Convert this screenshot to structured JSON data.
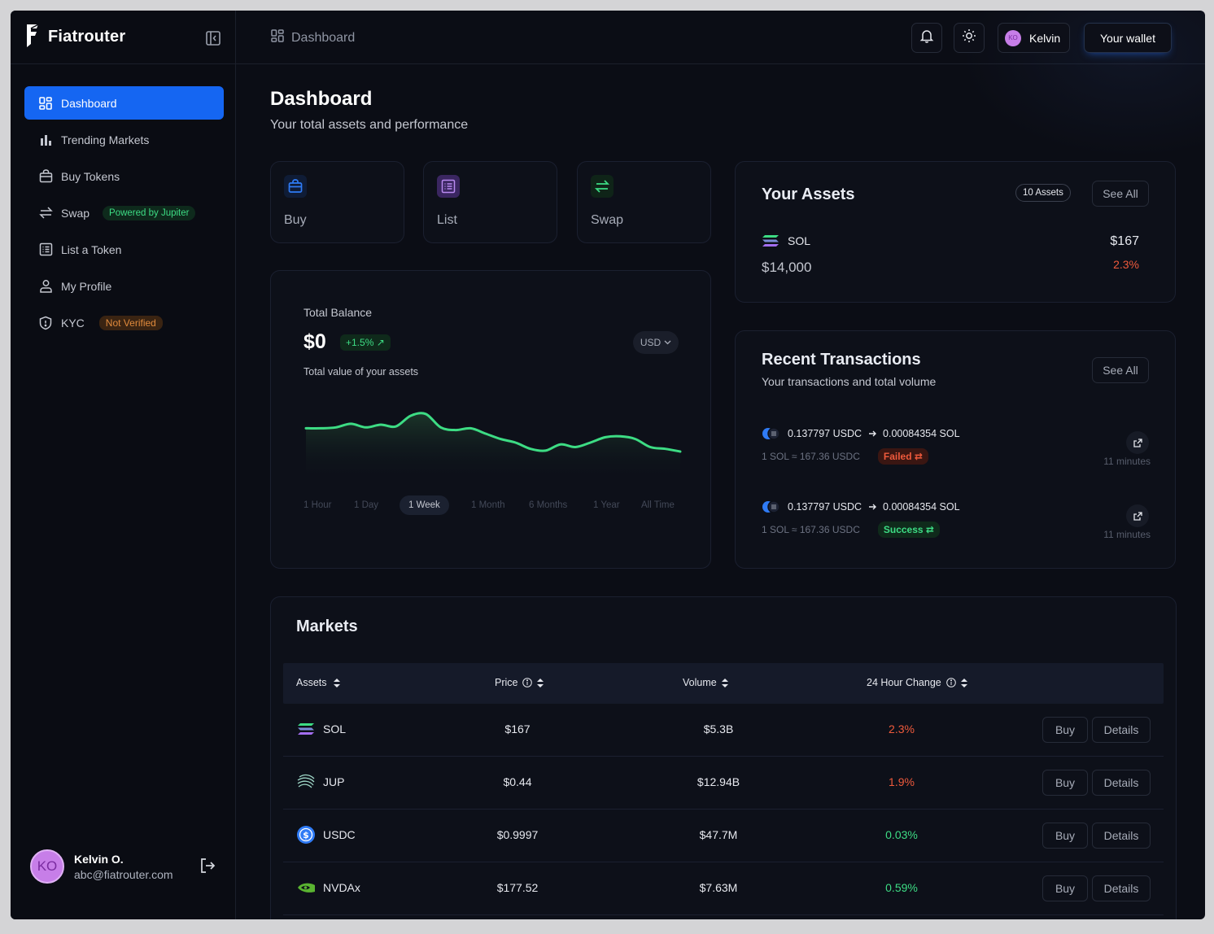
{
  "app": {
    "name": "Fiatrouter"
  },
  "sidebar": {
    "items": [
      {
        "label": "Dashboard",
        "icon": "dashboard-icon"
      },
      {
        "label": "Trending Markets",
        "icon": "bar-chart-icon"
      },
      {
        "label": "Buy Tokens",
        "icon": "shopping-bag-icon"
      },
      {
        "label": "Swap",
        "icon": "swap-icon",
        "badge": "Powered by Jupiter"
      },
      {
        "label": "List a Token",
        "icon": "list-icon"
      },
      {
        "label": "My Profile",
        "icon": "user-icon"
      },
      {
        "label": "KYC",
        "icon": "shield-icon",
        "badge": "Not Verified"
      }
    ],
    "user": {
      "initials": "KO",
      "name": "Kelvin O.",
      "email": "abc@fiatrouter.com"
    }
  },
  "header": {
    "breadcrumb": "Dashboard",
    "user_initials": "KO",
    "user_name": "Kelvin",
    "wallet_label": "Your wallet"
  },
  "page": {
    "title": "Dashboard",
    "subtitle": "Your total assets and performance"
  },
  "actions": [
    {
      "label": "Buy",
      "color": "#2f7bf5"
    },
    {
      "label": "List",
      "color": "#9b5de5"
    },
    {
      "label": "Swap",
      "color": "#3ddc84"
    }
  ],
  "balance": {
    "label": "Total Balance",
    "value": "$0",
    "change": "+1.5% ↗",
    "currency": "USD",
    "description": "Total value of your assets",
    "ranges": [
      "1 Hour",
      "1 Day",
      "1 Week",
      "1 Month",
      "6 Months",
      "1 Year",
      "All Time"
    ],
    "active_range": "1 Week"
  },
  "chart_data": {
    "type": "area",
    "title": "Total Balance",
    "x": [
      0,
      1,
      2,
      3,
      4,
      5,
      6,
      7,
      8,
      9,
      10,
      11,
      12,
      13,
      14,
      15,
      16,
      17,
      18,
      19,
      20,
      21,
      22,
      23,
      24,
      25
    ],
    "values": [
      56,
      56,
      57,
      61,
      57,
      60,
      58,
      70,
      72,
      57,
      54,
      56,
      50,
      44,
      40,
      33,
      31,
      38,
      35,
      40,
      46,
      47,
      44,
      35,
      33,
      30
    ],
    "ylim": [
      0,
      100
    ],
    "xlabel": "",
    "ylabel": "",
    "line_color": "#3ddc84"
  },
  "assets": {
    "title": "Your Assets",
    "count_label": "10 Assets",
    "see_all": "See All",
    "items": [
      {
        "symbol": "SOL",
        "value": "$14,000",
        "price": "$167",
        "change": "2.3%"
      }
    ]
  },
  "transactions": {
    "title": "Recent Transactions",
    "subtitle": "Your transactions and total volume",
    "see_all": "See All",
    "items": [
      {
        "from": "0.137797 USDC",
        "to": "0.00084354 SOL",
        "rate": "1 SOL ≈ 167.36 USDC",
        "status": "Failed ⇄",
        "time": "11 minutes"
      },
      {
        "from": "0.137797 USDC",
        "to": "0.00084354 SOL",
        "rate": "1 SOL ≈ 167.36 USDC",
        "status": "Success ⇄",
        "time": "11 minutes"
      }
    ]
  },
  "markets": {
    "title": "Markets",
    "columns": [
      "Assets",
      "Price",
      "Volume",
      "24 Hour Change"
    ],
    "buy_label": "Buy",
    "details_label": "Details",
    "rows": [
      {
        "symbol": "SOL",
        "price": "$167",
        "volume": "$5.3B",
        "change": "2.3%",
        "trend": "down"
      },
      {
        "symbol": "JUP",
        "price": "$0.44",
        "volume": "$12.94B",
        "change": "1.9%",
        "trend": "down"
      },
      {
        "symbol": "USDC",
        "price": "$0.9997",
        "volume": "$47.7M",
        "change": "0.03%",
        "trend": "up"
      },
      {
        "symbol": "NVDAx",
        "price": "$177.52",
        "volume": "$7.63M",
        "change": "0.59%",
        "trend": "up"
      }
    ]
  }
}
